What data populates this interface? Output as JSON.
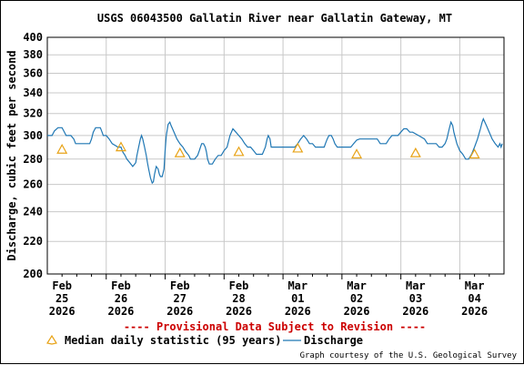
{
  "chart_data": {
    "type": "line",
    "title": "USGS 06043500 Gallatin River near Gallatin Gateway, MT",
    "ylabel": "Discharge, cubic feet per second",
    "xlabel": "",
    "y_scale": "log",
    "ylim": [
      200,
      400
    ],
    "y_ticks": [
      200,
      220,
      240,
      260,
      280,
      300,
      320,
      340,
      360,
      380,
      400
    ],
    "y_tick_labels": [
      "200",
      "220",
      "240",
      "260",
      "280",
      "300",
      "320",
      "340",
      "360",
      "380",
      "400"
    ],
    "x_range_days": [
      0,
      7.75
    ],
    "x_ticks": [
      {
        "day": 0.25,
        "month": "Feb",
        "day_label": "25",
        "year": "2026"
      },
      {
        "day": 1.25,
        "month": "Feb",
        "day_label": "26",
        "year": "2026"
      },
      {
        "day": 2.25,
        "month": "Feb",
        "day_label": "27",
        "year": "2026"
      },
      {
        "day": 3.25,
        "month": "Feb",
        "day_label": "28",
        "year": "2026"
      },
      {
        "day": 4.25,
        "month": "Mar",
        "day_label": "01",
        "year": "2026"
      },
      {
        "day": 5.25,
        "month": "Mar",
        "day_label": "02",
        "year": "2026"
      },
      {
        "day": 6.25,
        "month": "Mar",
        "day_label": "03",
        "year": "2026"
      },
      {
        "day": 7.25,
        "month": "Mar",
        "day_label": "04",
        "year": "2026"
      }
    ],
    "grid": true,
    "series": [
      {
        "name": "Discharge",
        "color": "#1f77b4",
        "points": [
          [
            0.0,
            300
          ],
          [
            0.08,
            300
          ],
          [
            0.12,
            304
          ],
          [
            0.18,
            307
          ],
          [
            0.25,
            307
          ],
          [
            0.28,
            304
          ],
          [
            0.32,
            300
          ],
          [
            0.4,
            300
          ],
          [
            0.45,
            297
          ],
          [
            0.48,
            293
          ],
          [
            0.55,
            293
          ],
          [
            0.65,
            293
          ],
          [
            0.72,
            293
          ],
          [
            0.75,
            297
          ],
          [
            0.78,
            303
          ],
          [
            0.82,
            307
          ],
          [
            0.9,
            307
          ],
          [
            0.93,
            303
          ],
          [
            0.95,
            300
          ],
          [
            1.0,
            300
          ],
          [
            1.05,
            297
          ],
          [
            1.1,
            293
          ],
          [
            1.2,
            290
          ],
          [
            1.25,
            290
          ],
          [
            1.28,
            286
          ],
          [
            1.32,
            283
          ],
          [
            1.35,
            280
          ],
          [
            1.4,
            277
          ],
          [
            1.45,
            274
          ],
          [
            1.5,
            277
          ],
          [
            1.52,
            283
          ],
          [
            1.55,
            290
          ],
          [
            1.58,
            297
          ],
          [
            1.6,
            300
          ],
          [
            1.62,
            297
          ],
          [
            1.65,
            290
          ],
          [
            1.68,
            283
          ],
          [
            1.7,
            277
          ],
          [
            1.72,
            272
          ],
          [
            1.75,
            265
          ],
          [
            1.78,
            261
          ],
          [
            1.8,
            262
          ],
          [
            1.82,
            268
          ],
          [
            1.85,
            274
          ],
          [
            1.88,
            272
          ],
          [
            1.9,
            268
          ],
          [
            1.92,
            266
          ],
          [
            1.95,
            266
          ],
          [
            1.98,
            272
          ],
          [
            2.0,
            287
          ],
          [
            2.02,
            300
          ],
          [
            2.05,
            310
          ],
          [
            2.08,
            312
          ],
          [
            2.1,
            309
          ],
          [
            2.15,
            303
          ],
          [
            2.2,
            297
          ],
          [
            2.25,
            293
          ],
          [
            2.3,
            290
          ],
          [
            2.35,
            286
          ],
          [
            2.4,
            283
          ],
          [
            2.43,
            280
          ],
          [
            2.5,
            280
          ],
          [
            2.55,
            283
          ],
          [
            2.58,
            287
          ],
          [
            2.6,
            290
          ],
          [
            2.62,
            293
          ],
          [
            2.65,
            293
          ],
          [
            2.68,
            290
          ],
          [
            2.7,
            286
          ],
          [
            2.72,
            280
          ],
          [
            2.75,
            276
          ],
          [
            2.8,
            276
          ],
          [
            2.85,
            280
          ],
          [
            2.9,
            283
          ],
          [
            2.95,
            283
          ],
          [
            3.0,
            287
          ],
          [
            3.05,
            290
          ],
          [
            3.1,
            300
          ],
          [
            3.15,
            306
          ],
          [
            3.2,
            303
          ],
          [
            3.25,
            300
          ],
          [
            3.3,
            297
          ],
          [
            3.35,
            293
          ],
          [
            3.4,
            290
          ],
          [
            3.45,
            290
          ],
          [
            3.5,
            287
          ],
          [
            3.55,
            284
          ],
          [
            3.6,
            284
          ],
          [
            3.65,
            284
          ],
          [
            3.7,
            290
          ],
          [
            3.73,
            297
          ],
          [
            3.75,
            300
          ],
          [
            3.78,
            297
          ],
          [
            3.8,
            290
          ],
          [
            3.85,
            290
          ],
          [
            3.9,
            290
          ],
          [
            4.0,
            290
          ],
          [
            4.1,
            290
          ],
          [
            4.2,
            290
          ],
          [
            4.25,
            293
          ],
          [
            4.3,
            297
          ],
          [
            4.35,
            300
          ],
          [
            4.4,
            297
          ],
          [
            4.45,
            293
          ],
          [
            4.5,
            293
          ],
          [
            4.55,
            290
          ],
          [
            4.6,
            290
          ],
          [
            4.65,
            290
          ],
          [
            4.7,
            290
          ],
          [
            4.72,
            293
          ],
          [
            4.75,
            297
          ],
          [
            4.78,
            300
          ],
          [
            4.82,
            300
          ],
          [
            4.85,
            297
          ],
          [
            4.88,
            293
          ],
          [
            4.92,
            290
          ],
          [
            5.0,
            290
          ],
          [
            5.1,
            290
          ],
          [
            5.15,
            290
          ],
          [
            5.2,
            293
          ],
          [
            5.25,
            296
          ],
          [
            5.3,
            297
          ],
          [
            5.4,
            297
          ],
          [
            5.5,
            297
          ],
          [
            5.6,
            297
          ],
          [
            5.65,
            293
          ],
          [
            5.7,
            293
          ],
          [
            5.75,
            293
          ],
          [
            5.8,
            297
          ],
          [
            5.85,
            300
          ],
          [
            5.9,
            300
          ],
          [
            5.95,
            300
          ],
          [
            6.0,
            303
          ],
          [
            6.05,
            306
          ],
          [
            6.1,
            306
          ],
          [
            6.15,
            303
          ],
          [
            6.2,
            303
          ],
          [
            6.3,
            300
          ],
          [
            6.4,
            297
          ],
          [
            6.45,
            293
          ],
          [
            6.5,
            293
          ],
          [
            6.55,
            293
          ],
          [
            6.6,
            293
          ],
          [
            6.65,
            290
          ],
          [
            6.7,
            290
          ],
          [
            6.75,
            293
          ],
          [
            6.78,
            297
          ],
          [
            6.82,
            306
          ],
          [
            6.85,
            312
          ],
          [
            6.88,
            309
          ],
          [
            6.9,
            303
          ],
          [
            6.95,
            293
          ],
          [
            7.0,
            287
          ],
          [
            7.05,
            284
          ],
          [
            7.1,
            280
          ],
          [
            7.15,
            280
          ],
          [
            7.2,
            284
          ],
          [
            7.25,
            290
          ],
          [
            7.3,
            297
          ],
          [
            7.35,
            306
          ],
          [
            7.38,
            312
          ],
          [
            7.4,
            315
          ],
          [
            7.45,
            309
          ],
          [
            7.5,
            303
          ],
          [
            7.55,
            297
          ],
          [
            7.6,
            293
          ],
          [
            7.65,
            290
          ],
          [
            7.68,
            293
          ],
          [
            7.7,
            290
          ],
          [
            7.72,
            293
          ]
        ]
      },
      {
        "name": "Median daily statistic (95 years)",
        "color": "#e8a317",
        "marker": "triangle",
        "points": [
          [
            0.25,
            288
          ],
          [
            1.25,
            290
          ],
          [
            2.25,
            285
          ],
          [
            3.25,
            286
          ],
          [
            4.25,
            289
          ],
          [
            5.25,
            284
          ],
          [
            6.25,
            285
          ],
          [
            7.25,
            284
          ]
        ]
      }
    ],
    "provisional_note": "---- Provisional Data Subject to Revision ----",
    "legend": {
      "median_label": "Median daily statistic (95 years)",
      "discharge_label": "Discharge"
    },
    "credit": "Graph courtesy of the U.S. Geological Survey"
  }
}
